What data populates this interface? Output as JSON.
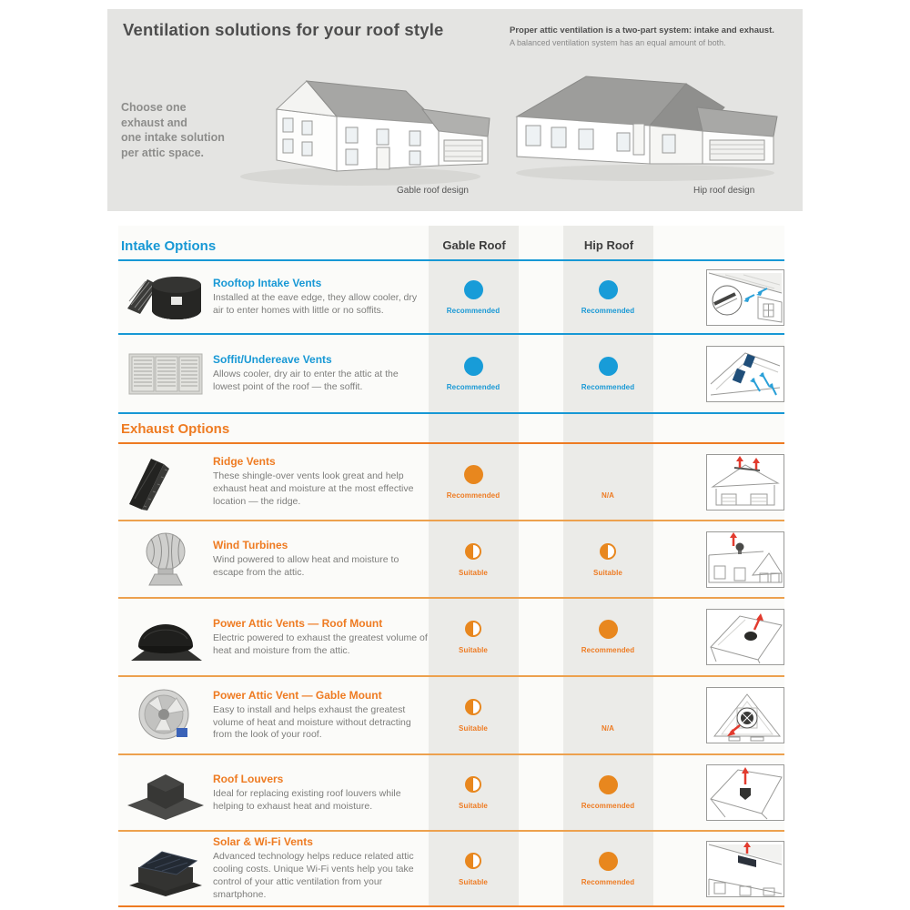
{
  "header": {
    "title": "Ventilation solutions for your roof style",
    "note_bold": "Proper attic ventilation is a two-part system: intake and exhaust.",
    "note_regular": "A balanced ventilation system has an equal amount of both.",
    "choose_text": "Choose one\nexhaust and\none intake solution\nper attic space.",
    "gable_label": "Gable roof design",
    "hip_label": "Hip roof design"
  },
  "table": {
    "columns": [
      "Gable Roof",
      "Hip Roof"
    ],
    "sections": [
      {
        "heading": "Intake Options",
        "color": "#1798d5",
        "dot_color": "#189cd8",
        "line_color": "#1798d5",
        "rows": [
          {
            "icon": "rooftop-intake-vents",
            "title": "Rooftop Intake Vents",
            "description": "Installed at the eave edge, they allow cooler, dry air to enter homes with little or no soffits.",
            "gable": "Recommended",
            "hip": "Recommended"
          },
          {
            "icon": "soffit-undereave-vents",
            "title": "Soffit/Undereave Vents",
            "description": "Allows cooler, dry air to enter the attic at the lowest point of the roof — the soffit.",
            "gable": "Recommended",
            "hip": "Recommended"
          }
        ]
      },
      {
        "heading": "Exhaust Options",
        "color": "#ee7b22",
        "dot_color": "#e8871e",
        "line_color": "#eda14e",
        "rows": [
          {
            "icon": "ridge-vents",
            "title": "Ridge Vents",
            "description": "These shingle-over vents look great and help exhaust heat and moisture at the most effective location — the ridge.",
            "gable": "Recommended",
            "hip": "N/A"
          },
          {
            "icon": "wind-turbines",
            "title": "Wind Turbines",
            "description": "Wind powered to allow heat and moisture to escape from the attic.",
            "gable": "Suitable",
            "hip": "Suitable"
          },
          {
            "icon": "power-attic-roof-mount",
            "title": "Power Attic Vents — Roof Mount",
            "description": "Electric powered to exhaust the greatest volume of heat and moisture from the attic.",
            "gable": "Suitable",
            "hip": "Recommended"
          },
          {
            "icon": "power-attic-gable-mount",
            "title": "Power Attic Vent — Gable Mount",
            "description": "Easy to install and helps exhaust the greatest volume of heat and moisture without detracting from the look of your roof.",
            "gable": "Suitable",
            "hip": "N/A"
          },
          {
            "icon": "roof-louvers",
            "title": "Roof Louvers",
            "description": "Ideal for replacing existing roof louvers while helping to exhaust heat and moisture.",
            "gable": "Suitable",
            "hip": "Recommended"
          },
          {
            "icon": "solar-wifi-vents",
            "title": "Solar & Wi-Fi Vents",
            "description": "Advanced technology helps reduce related attic cooling costs. Unique Wi-Fi vents help you take control of your attic ventilation from your smartphone.",
            "gable": "Suitable",
            "hip": "Recommended"
          }
        ]
      }
    ]
  },
  "colors": {
    "intake_blue": "#1798d5",
    "exhaust_orange": "#ee7b22",
    "dot_blue": "#189cd8",
    "dot_orange": "#e8871e",
    "arrow_blue": "#2aa0d8",
    "arrow_red": "#e23b2e"
  }
}
